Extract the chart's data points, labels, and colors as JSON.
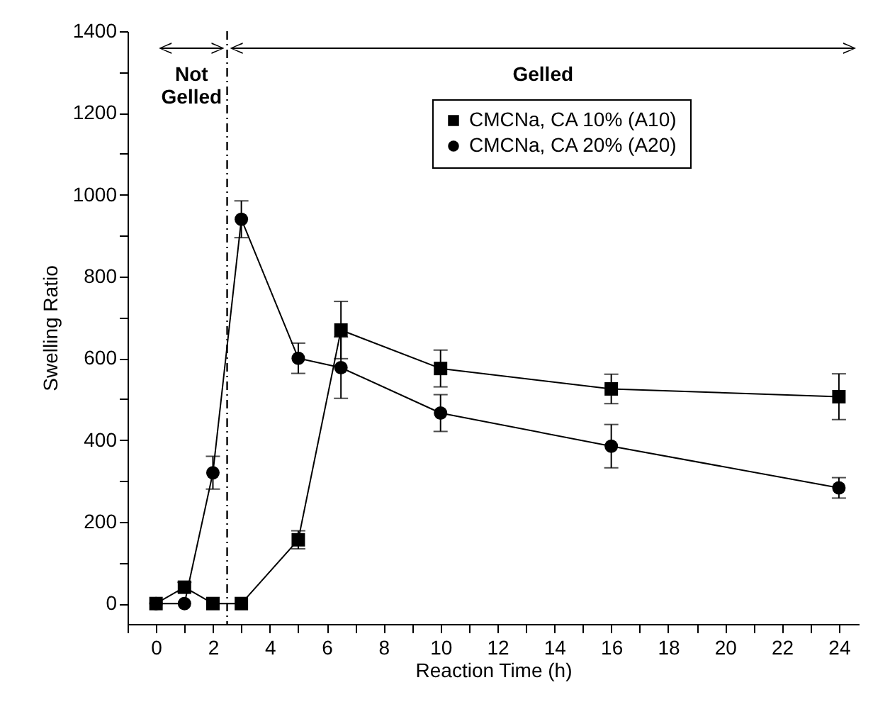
{
  "chart_data": {
    "type": "line",
    "xlabel": "Reaction Time (h)",
    "ylabel": "Swelling Ratio",
    "x": [
      0,
      1,
      2,
      3,
      5,
      6.5,
      10,
      16,
      24
    ],
    "series": [
      {
        "name": "CMCNa, CA 10% (A10)",
        "color": "#000000",
        "marker": "square",
        "values": [
          0,
          40,
          0,
          0,
          156,
          669,
          575,
          525,
          506
        ],
        "errors": [
          null,
          12,
          null,
          null,
          22,
          70,
          45,
          36,
          56
        ]
      },
      {
        "name": "CMCNa, CA 20% (A20)",
        "color": "#000000",
        "marker": "circle",
        "values": [
          0,
          0,
          320,
          940,
          600,
          577,
          466,
          385,
          283
        ],
        "errors": [
          null,
          null,
          40,
          45,
          37,
          75,
          45,
          53,
          25
        ]
      }
    ],
    "xlim": [
      -1,
      24.7
    ],
    "xticks": [
      {
        "value": -1,
        "label": null
      },
      0,
      {
        "value": 1,
        "label": null
      },
      2,
      {
        "value": 3,
        "label": null
      },
      4,
      {
        "value": 5,
        "label": null
      },
      6,
      {
        "value": 7,
        "label": null
      },
      8,
      {
        "value": 9,
        "label": null
      },
      10,
      {
        "value": 11,
        "label": null
      },
      12,
      {
        "value": 13,
        "label": null
      },
      14,
      {
        "value": 15,
        "label": null
      },
      16,
      {
        "value": 17,
        "label": null
      },
      18,
      {
        "value": 19,
        "label": null
      },
      20,
      {
        "value": 21,
        "label": null
      },
      22,
      {
        "value": 23,
        "label": null
      },
      24
    ],
    "ylim": [
      -50,
      1400
    ],
    "yticks": [
      0,
      {
        "value": 100,
        "label": null
      },
      200,
      {
        "value": 300,
        "label": null
      },
      400,
      {
        "value": 500,
        "label": null
      },
      600,
      {
        "value": 700,
        "label": null
      },
      800,
      {
        "value": 900,
        "label": null
      },
      1000,
      {
        "value": 1100,
        "label": null
      },
      1200,
      {
        "value": 1300,
        "label": null
      },
      1400
    ],
    "ref_lines": [
      {
        "axis": "x",
        "value": 2.5,
        "line_style": "dashed"
      }
    ],
    "annotations": [
      "Not Gelled",
      "Gelled"
    ],
    "legend": "top right",
    "grid": false
  }
}
